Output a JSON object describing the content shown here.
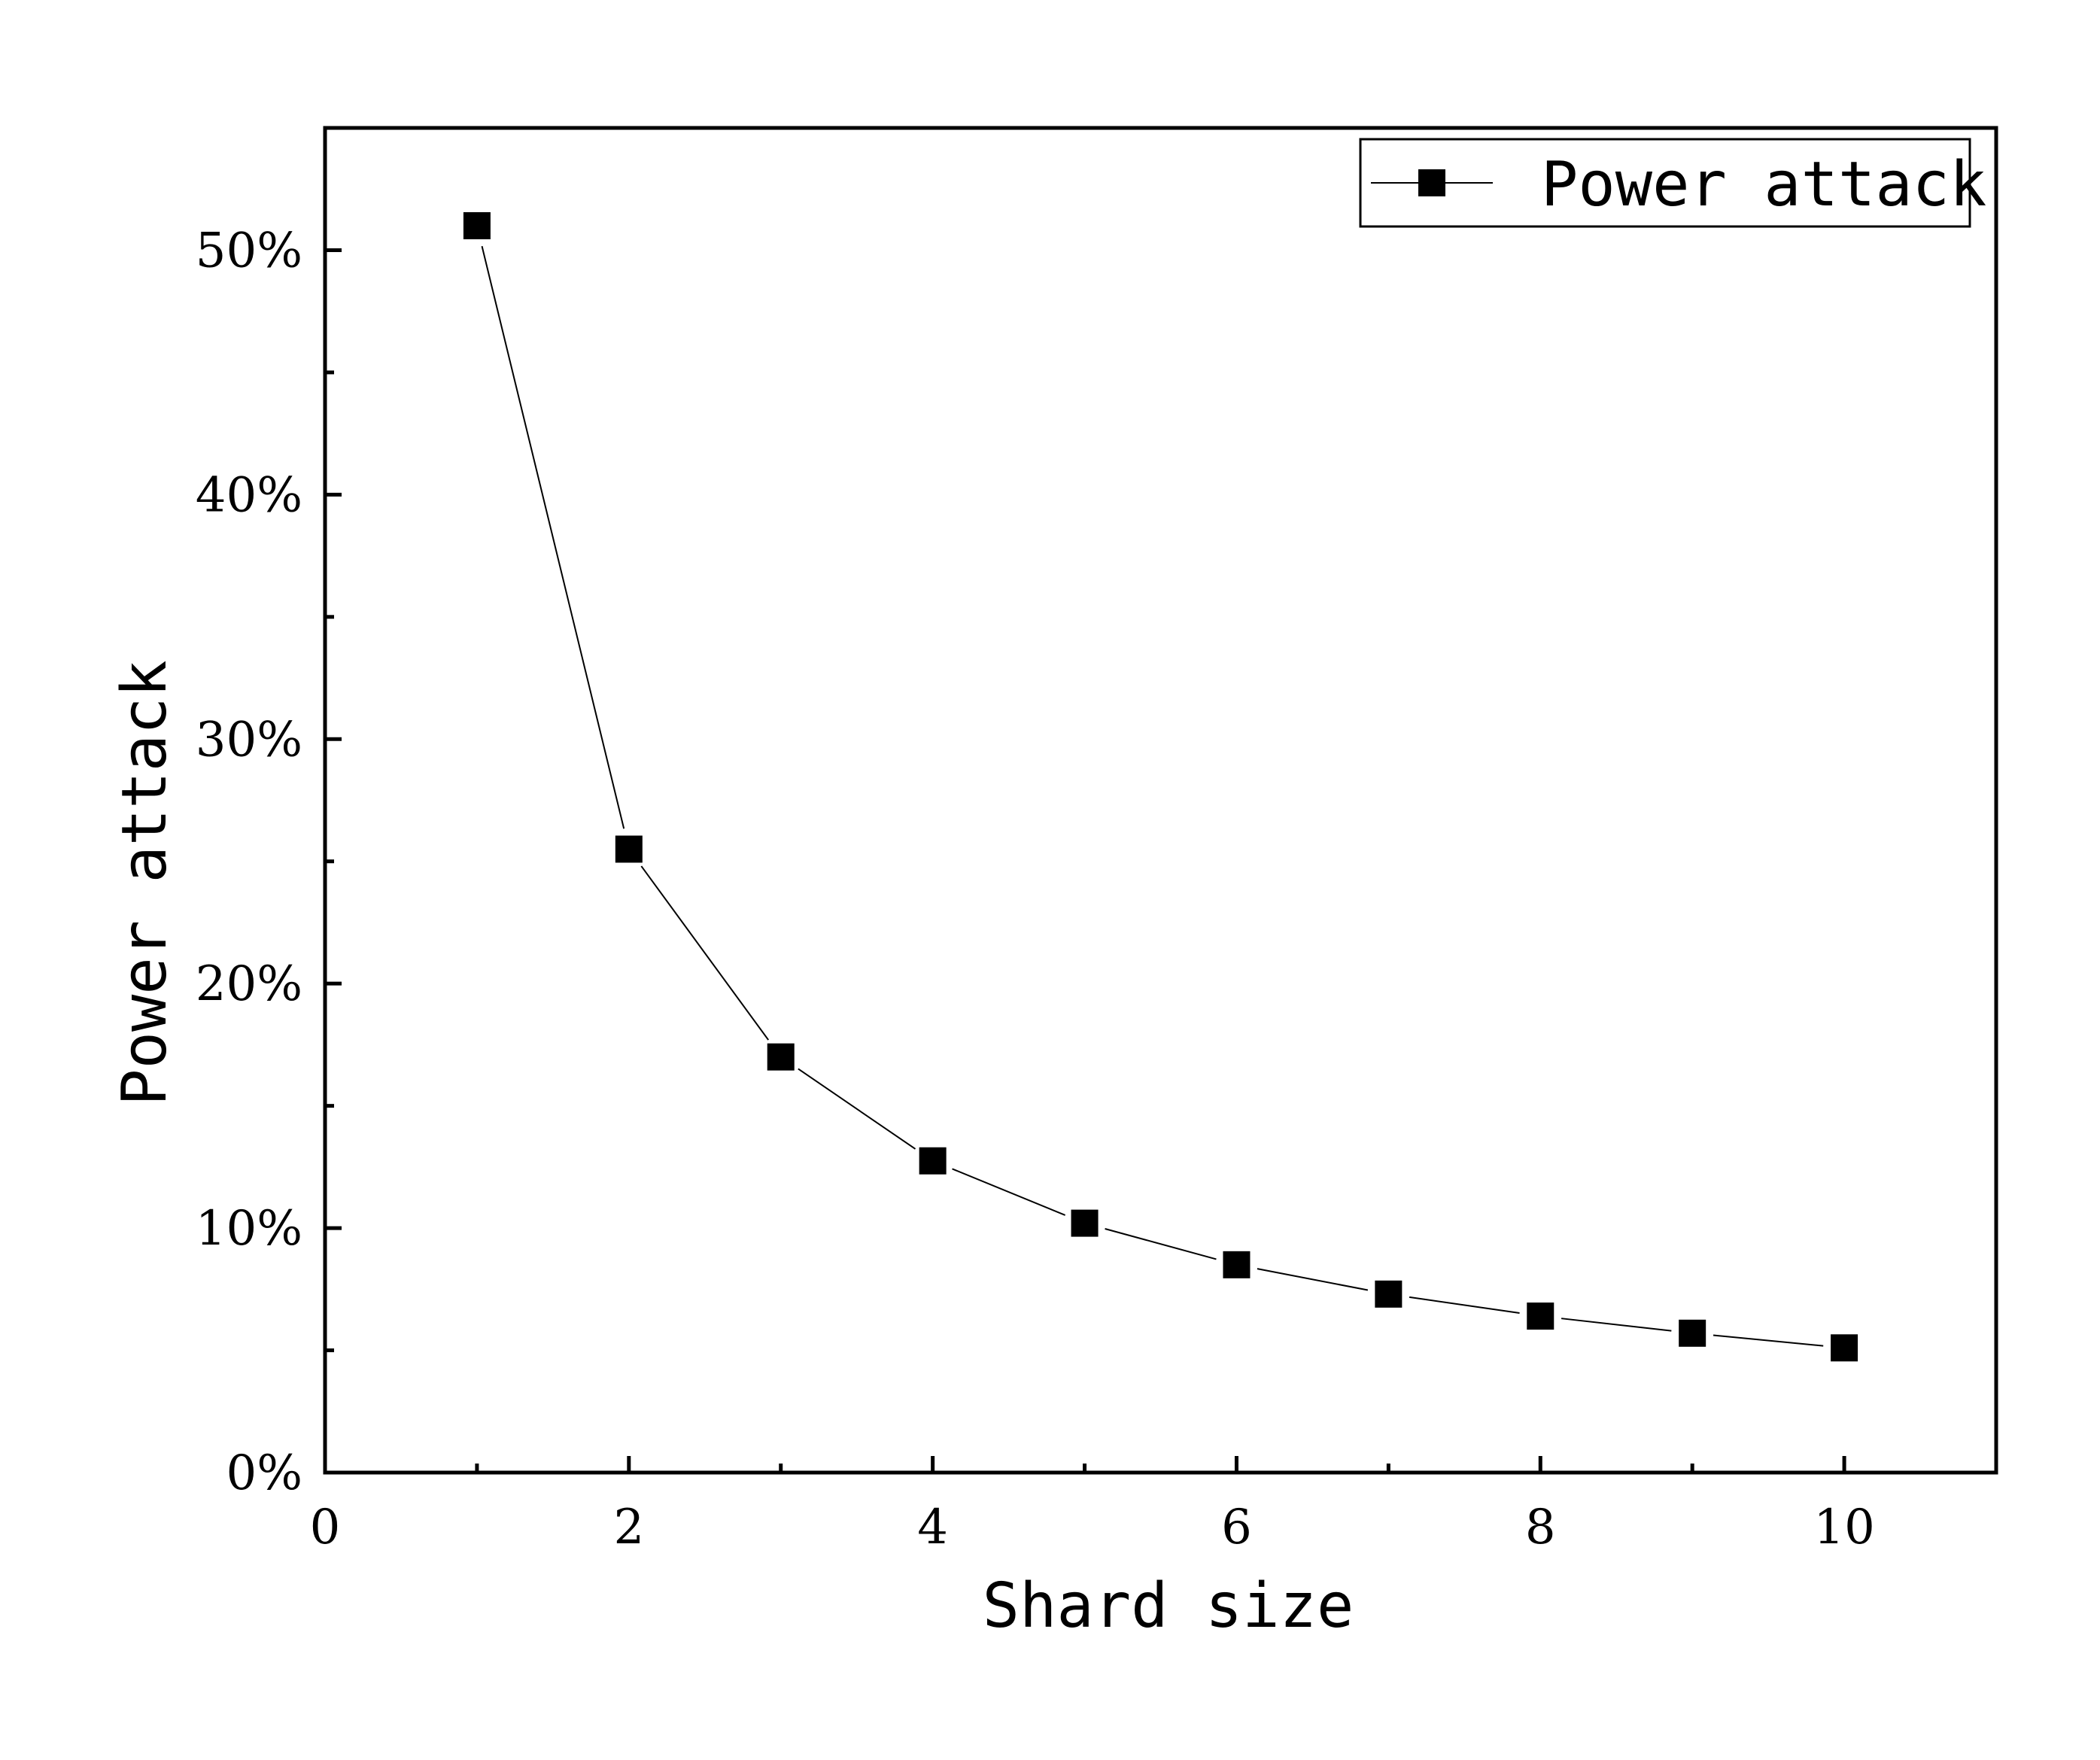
{
  "chart_data": {
    "type": "line",
    "x": [
      1,
      2,
      3,
      4,
      5,
      6,
      7,
      8,
      9,
      10
    ],
    "series": [
      {
        "name": "Power attack",
        "values": [
          51.0,
          25.5,
          17.0,
          12.75,
          10.2,
          8.5,
          7.3,
          6.4,
          5.7,
          5.1
        ],
        "marker": "square",
        "color": "#000000"
      }
    ],
    "title": "",
    "xlabel": "Shard size",
    "ylabel": "Power attack",
    "xlim": [
      0,
      11
    ],
    "ylim": [
      0,
      55
    ],
    "x_ticks": [
      0,
      2,
      4,
      6,
      8,
      10
    ],
    "x_tick_labels": [
      "0",
      "2",
      "4",
      "6",
      "8",
      "10"
    ],
    "x_minor_ticks": [
      1,
      3,
      5,
      7,
      9
    ],
    "y_ticks": [
      0,
      10,
      20,
      30,
      40,
      50
    ],
    "y_tick_labels": [
      "0%",
      "10%",
      "20%",
      "30%",
      "40%",
      "50%"
    ],
    "y_minor_ticks": [
      5,
      15,
      25,
      35,
      45
    ],
    "grid": false,
    "legend_position": "top-right"
  }
}
